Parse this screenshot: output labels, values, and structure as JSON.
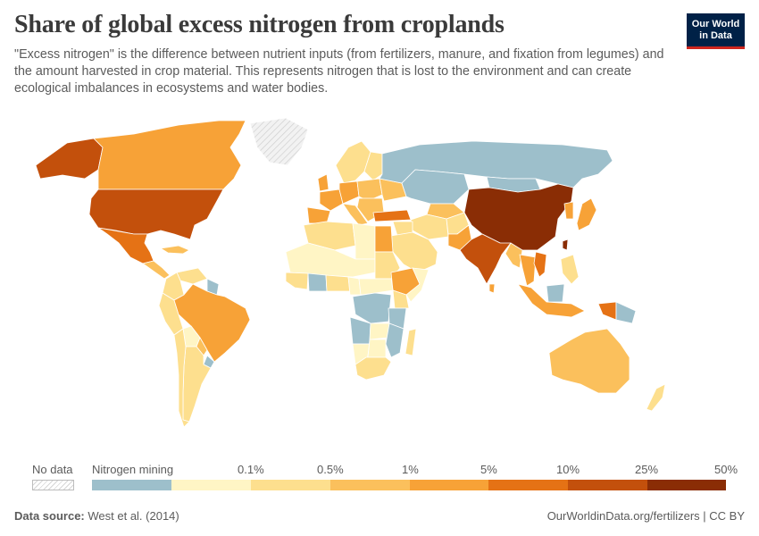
{
  "header": {
    "title": "Share of global excess nitrogen from croplands",
    "subtitle": "\"Excess nitrogen\" is the difference between nutrient inputs (from fertilizers, manure, and fixation from legumes) and the amount harvested in crop material. This represents nitrogen that is lost to the environment and can create ecological imbalances in ecosystems and water bodies.",
    "logo_line1": "Our World",
    "logo_line2": "in Data"
  },
  "legend": {
    "no_data_label": "No data",
    "bins": [
      {
        "label": "Nitrogen mining",
        "color": "#9dbfcb"
      },
      {
        "label": "0.1%",
        "color": "#fff5c5"
      },
      {
        "label": "0.5%",
        "color": "#fddf8e"
      },
      {
        "label": "1%",
        "color": "#fbc05c"
      },
      {
        "label": "5%",
        "color": "#f7a237"
      },
      {
        "label": "10%",
        "color": "#e57215"
      },
      {
        "label": "25%",
        "color": "#c3500c"
      },
      {
        "label": "50%",
        "color": "#8a2d05"
      }
    ]
  },
  "colors": {
    "mining": "#9dbfcb",
    "b1": "#fff5c5",
    "b2": "#fddf8e",
    "b3": "#fbc05c",
    "b4": "#f7a237",
    "b5": "#e57215",
    "b6": "#c3500c",
    "b7": "#8a2d05",
    "nodata": "#e8e8e8"
  },
  "regions": [
    {
      "name": "Alaska",
      "level": "b6"
    },
    {
      "name": "Canada",
      "level": "b4"
    },
    {
      "name": "Greenland",
      "level": "nodata"
    },
    {
      "name": "United States",
      "level": "b6"
    },
    {
      "name": "Mexico",
      "level": "b5"
    },
    {
      "name": "Central America",
      "level": "b3"
    },
    {
      "name": "Cuba",
      "level": "b3"
    },
    {
      "name": "Venezuela",
      "level": "b2"
    },
    {
      "name": "Colombia",
      "level": "b2"
    },
    {
      "name": "Guyana",
      "level": "mining"
    },
    {
      "name": "Peru",
      "level": "b2"
    },
    {
      "name": "Brazil",
      "level": "b4"
    },
    {
      "name": "Bolivia",
      "level": "b1"
    },
    {
      "name": "Paraguay",
      "level": "b3"
    },
    {
      "name": "Argentina",
      "level": "b2"
    },
    {
      "name": "Chile",
      "level": "b2"
    },
    {
      "name": "Uruguay",
      "level": "mining"
    },
    {
      "name": "Russia",
      "level": "mining"
    },
    {
      "name": "Scandinavia",
      "level": "b2"
    },
    {
      "name": "Finland",
      "level": "b2"
    },
    {
      "name": "UK",
      "level": "b4"
    },
    {
      "name": "France",
      "level": "b4"
    },
    {
      "name": "Spain",
      "level": "b4"
    },
    {
      "name": "Germany",
      "level": "b4"
    },
    {
      "name": "Eastern Europe",
      "level": "b3"
    },
    {
      "name": "Ukraine",
      "level": "b3"
    },
    {
      "name": "Italy",
      "level": "b3"
    },
    {
      "name": "Balkans",
      "level": "b3"
    },
    {
      "name": "Turkey",
      "level": "b5"
    },
    {
      "name": "Kazakhstan",
      "level": "mining"
    },
    {
      "name": "Central Asia",
      "level": "b3"
    },
    {
      "name": "Iran",
      "level": "b2"
    },
    {
      "name": "Afghanistan",
      "level": "b2"
    },
    {
      "name": "Pakistan",
      "level": "b4"
    },
    {
      "name": "India",
      "level": "b6"
    },
    {
      "name": "China",
      "level": "b7"
    },
    {
      "name": "Mongolia",
      "level": "mining"
    },
    {
      "name": "Japan",
      "level": "b4"
    },
    {
      "name": "Korea",
      "level": "b4"
    },
    {
      "name": "Myanmar",
      "level": "b3"
    },
    {
      "name": "Thailand",
      "level": "b4"
    },
    {
      "name": "Vietnam",
      "level": "b5"
    },
    {
      "name": "Arabian Peninsula",
      "level": "b2"
    },
    {
      "name": "Iraq Syria",
      "level": "b2"
    },
    {
      "name": "Maghreb",
      "level": "b2"
    },
    {
      "name": "Libya",
      "level": "b1"
    },
    {
      "name": "Egypt",
      "level": "b4"
    },
    {
      "name": "Sahel",
      "level": "b1"
    },
    {
      "name": "Sudan",
      "level": "b2"
    },
    {
      "name": "Ethiopia",
      "level": "b4"
    },
    {
      "name": "Somalia",
      "level": "b1"
    },
    {
      "name": "West Africa",
      "level": "b2"
    },
    {
      "name": "Ivory Coast",
      "level": "mining"
    },
    {
      "name": "Nigeria",
      "level": "b2"
    },
    {
      "name": "Cameroon",
      "level": "b1"
    },
    {
      "name": "Central Africa",
      "level": "b1"
    },
    {
      "name": "Congo",
      "level": "mining"
    },
    {
      "name": "Kenya",
      "level": "b2"
    },
    {
      "name": "Tanzania",
      "level": "mining"
    },
    {
      "name": "Angola",
      "level": "mining"
    },
    {
      "name": "Zambia",
      "level": "b1"
    },
    {
      "name": "Mozambique",
      "level": "mining"
    },
    {
      "name": "Namibia",
      "level": "b1"
    },
    {
      "name": "Botswana",
      "level": "b1"
    },
    {
      "name": "South Africa",
      "level": "b2"
    },
    {
      "name": "Madagascar",
      "level": "b2"
    },
    {
      "name": "Australia",
      "level": "b3"
    },
    {
      "name": "New Zealand",
      "level": "b2"
    },
    {
      "name": "Indonesia",
      "level": "b4"
    },
    {
      "name": "Philippines",
      "level": "b2"
    },
    {
      "name": "Borneo",
      "level": "mining"
    },
    {
      "name": "Papua",
      "level": "b5"
    },
    {
      "name": "Papua New Guinea",
      "level": "mining"
    },
    {
      "name": "Sri Lanka",
      "level": "b4"
    },
    {
      "name": "Taiwan",
      "level": "b7"
    }
  ],
  "footer": {
    "source_label": "Data source:",
    "source_value": "West et al. (2014)",
    "url": "OurWorldinData.org/fertilizers | CC BY"
  }
}
